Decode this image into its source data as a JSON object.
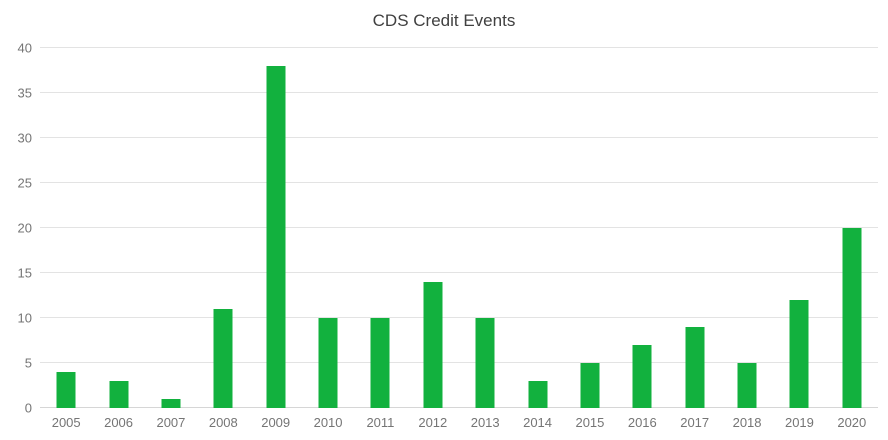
{
  "chart_data": {
    "type": "bar",
    "title": "CDS Credit Events",
    "categories": [
      "2005",
      "2006",
      "2007",
      "2008",
      "2009",
      "2010",
      "2011",
      "2012",
      "2013",
      "2014",
      "2015",
      "2016",
      "2017",
      "2018",
      "2019",
      "2020"
    ],
    "values": [
      4,
      3,
      1,
      11,
      38,
      10,
      10,
      14,
      10,
      3,
      5,
      7,
      9,
      5,
      12,
      20
    ],
    "xlabel": "",
    "ylabel": "",
    "ylim": [
      0,
      40
    ],
    "yticks": [
      0,
      5,
      10,
      15,
      20,
      25,
      30,
      35,
      40
    ],
    "grid": "horizontal",
    "legend": "none"
  },
  "colors": {
    "bar": "#12b13e",
    "gridline": "#e3e3e3",
    "tick_text": "#757575",
    "title_text": "#404040",
    "background": "#ffffff"
  }
}
